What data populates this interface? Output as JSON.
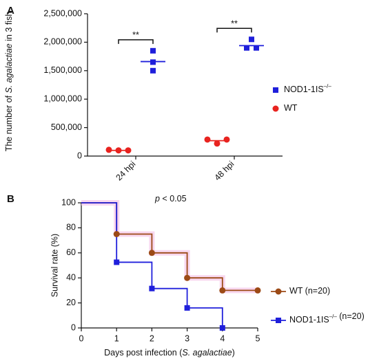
{
  "chart_data": [
    {
      "type": "dotplot",
      "panel": "A",
      "ylabel": [
        "The number of ",
        "S. agalactiae",
        " in 3 fish"
      ],
      "categories": [
        "24 hpi",
        "48 hpi"
      ],
      "ylim": [
        0,
        2500000
      ],
      "yticks": [
        0,
        {
          "value": 500000,
          "label": "500,000"
        },
        {
          "value": 1000000,
          "label": "1,000,000"
        },
        {
          "value": 1500000,
          "label": "1,500,000"
        },
        {
          "value": 2000000,
          "label": "2,000,000"
        },
        {
          "value": 2500000,
          "label": "2,500,000"
        }
      ],
      "series": [
        {
          "name": [
            "NOD1-1IS",
            "–/–"
          ],
          "color": "#1f1fdb",
          "marker": "square",
          "values": [
            [
              1850000,
              1650000,
              1500000
            ],
            [
              2050000,
              1900000,
              1900000
            ]
          ],
          "means": [
            1660000,
            1940000
          ]
        },
        {
          "name": [
            "WT"
          ],
          "color": "#e8231f",
          "marker": "circle",
          "values": [
            [
              110000,
              100000,
              100000
            ],
            [
              290000,
              220000,
              290000
            ]
          ],
          "means": [
            100000,
            270000
          ]
        }
      ],
      "significance": [
        "**",
        "**"
      ]
    },
    {
      "type": "survival",
      "panel": "B",
      "annotation": [
        "p",
        " < 0.05"
      ],
      "xlabel": [
        "Days post infection (",
        "S. agalactiae",
        ")"
      ],
      "ylabel": "Survival rate (%)",
      "xlim": [
        0,
        5
      ],
      "xticks": [
        0,
        1,
        2,
        3,
        4,
        5
      ],
      "ylim": [
        0,
        100
      ],
      "yticks": [
        0,
        20,
        40,
        60,
        80,
        100
      ],
      "series": [
        {
          "name": [
            "WT (n=20)"
          ],
          "color": "#9c4a16",
          "marker": "circle",
          "x": [
            0,
            1,
            2,
            3,
            4,
            5
          ],
          "values": [
            100,
            75,
            60,
            40,
            30,
            30
          ]
        },
        {
          "name": [
            "NOD1-1IS",
            "–/–",
            " (n=20)"
          ],
          "color": "#1f1fdb",
          "marker": "square",
          "x": [
            0,
            1,
            2,
            3,
            4
          ],
          "values": [
            100,
            52.5,
            31.5,
            16,
            0
          ]
        }
      ]
    }
  ]
}
